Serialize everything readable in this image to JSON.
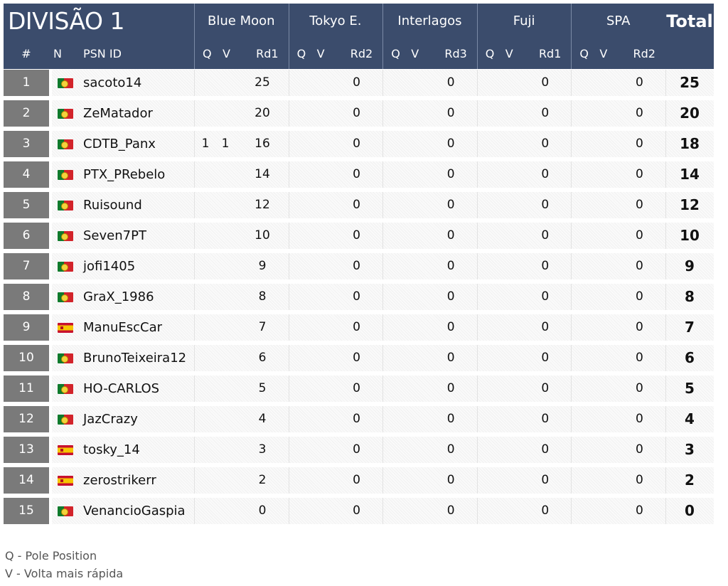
{
  "title": "DIVISÃO 1",
  "tracks": [
    {
      "name": "Blue Moon",
      "round": "Rd1"
    },
    {
      "name": "Tokyo E.",
      "round": "Rd2"
    },
    {
      "name": "Interlagos",
      "round": "Rd3"
    },
    {
      "name": "Fuji",
      "round": "Rd1"
    },
    {
      "name": "SPA",
      "round": "Rd2"
    }
  ],
  "headers": {
    "pos": "#",
    "nat": "N",
    "psn": "PSN ID",
    "q": "Q",
    "v": "V",
    "total": "Total"
  },
  "rows": [
    {
      "pos": "1",
      "flag": "pt",
      "psn": "sacoto14",
      "q": "",
      "v": "",
      "rd": [
        "25",
        "0",
        "0",
        "0",
        "0"
      ],
      "total": "25"
    },
    {
      "pos": "2",
      "flag": "pt",
      "psn": "ZeMatador",
      "q": "",
      "v": "",
      "rd": [
        "20",
        "0",
        "0",
        "0",
        "0"
      ],
      "total": "20"
    },
    {
      "pos": "3",
      "flag": "pt",
      "psn": "CDTB_Panx",
      "q": "1",
      "v": "1",
      "rd": [
        "16",
        "0",
        "0",
        "0",
        "0"
      ],
      "total": "18"
    },
    {
      "pos": "4",
      "flag": "pt",
      "psn": "PTX_PRebelo",
      "q": "",
      "v": "",
      "rd": [
        "14",
        "0",
        "0",
        "0",
        "0"
      ],
      "total": "14"
    },
    {
      "pos": "5",
      "flag": "pt",
      "psn": "Ruisound",
      "q": "",
      "v": "",
      "rd": [
        "12",
        "0",
        "0",
        "0",
        "0"
      ],
      "total": "12"
    },
    {
      "pos": "6",
      "flag": "pt",
      "psn": "Seven7PT",
      "q": "",
      "v": "",
      "rd": [
        "10",
        "0",
        "0",
        "0",
        "0"
      ],
      "total": "10"
    },
    {
      "pos": "7",
      "flag": "pt",
      "psn": "jofi1405",
      "q": "",
      "v": "",
      "rd": [
        "9",
        "0",
        "0",
        "0",
        "0"
      ],
      "total": "9"
    },
    {
      "pos": "8",
      "flag": "pt",
      "psn": "GraX_1986",
      "q": "",
      "v": "",
      "rd": [
        "8",
        "0",
        "0",
        "0",
        "0"
      ],
      "total": "8"
    },
    {
      "pos": "9",
      "flag": "es",
      "psn": "ManuEscCar",
      "q": "",
      "v": "",
      "rd": [
        "7",
        "0",
        "0",
        "0",
        "0"
      ],
      "total": "7"
    },
    {
      "pos": "10",
      "flag": "pt",
      "psn": "BrunoTeixeira12",
      "q": "",
      "v": "",
      "rd": [
        "6",
        "0",
        "0",
        "0",
        "0"
      ],
      "total": "6"
    },
    {
      "pos": "11",
      "flag": "pt",
      "psn": "HO-CARLOS",
      "q": "",
      "v": "",
      "rd": [
        "5",
        "0",
        "0",
        "0",
        "0"
      ],
      "total": "5"
    },
    {
      "pos": "12",
      "flag": "pt",
      "psn": "JazCrazy",
      "q": "",
      "v": "",
      "rd": [
        "4",
        "0",
        "0",
        "0",
        "0"
      ],
      "total": "4"
    },
    {
      "pos": "13",
      "flag": "es",
      "psn": "tosky_14",
      "q": "",
      "v": "",
      "rd": [
        "3",
        "0",
        "0",
        "0",
        "0"
      ],
      "total": "3"
    },
    {
      "pos": "14",
      "flag": "es",
      "psn": "zerostrikerr",
      "q": "",
      "v": "",
      "rd": [
        "2",
        "0",
        "0",
        "0",
        "0"
      ],
      "total": "2"
    },
    {
      "pos": "15",
      "flag": "pt",
      "psn": "VenancioGaspia",
      "q": "",
      "v": "",
      "rd": [
        "0",
        "0",
        "0",
        "0",
        "0"
      ],
      "total": "0"
    }
  ],
  "legend": [
    "Q - Pole Position",
    "V - Volta mais rápida"
  ],
  "colors": {
    "header_bg": "#3b4c6c",
    "pos_bg": "#7a7a7a"
  }
}
